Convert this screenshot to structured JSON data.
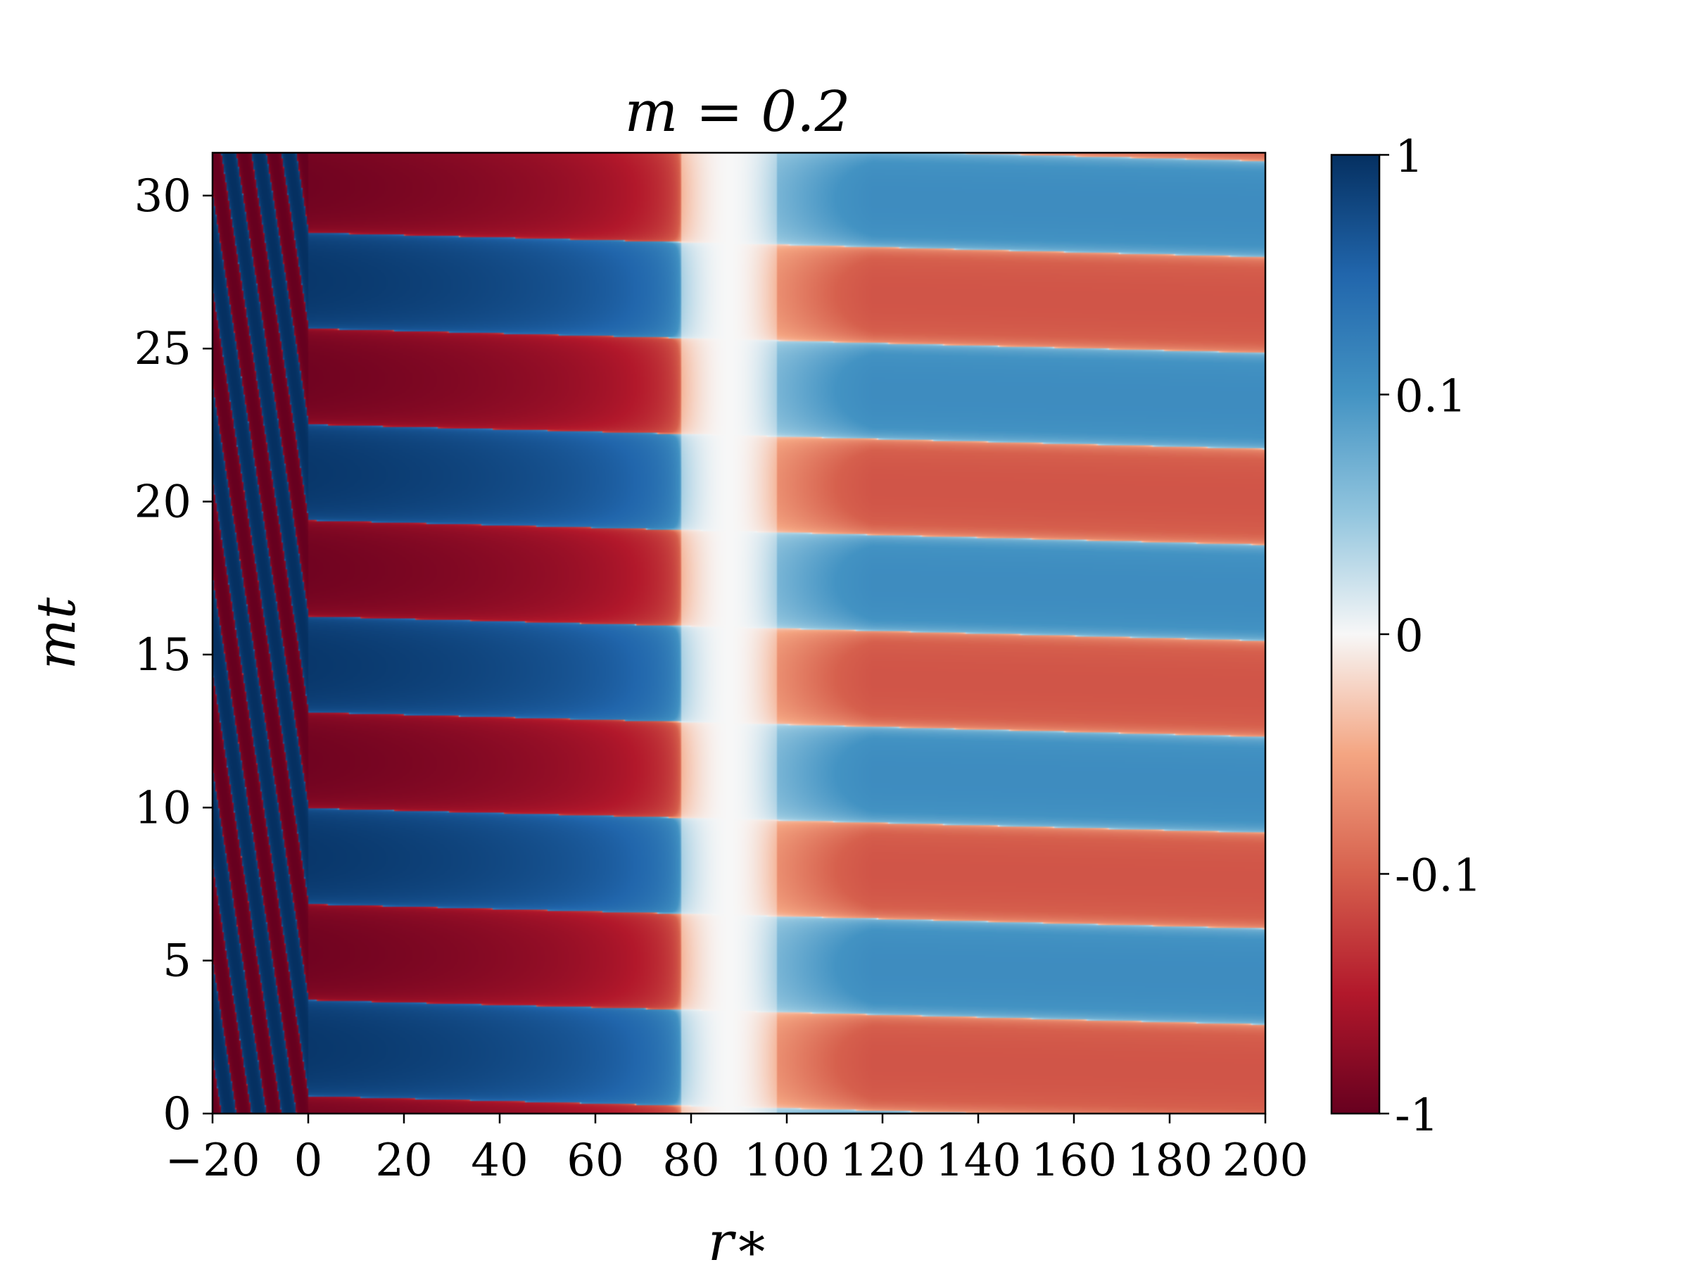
{
  "chart_data": {
    "type": "heatmap",
    "title": "m = 0.2",
    "xlabel": "r∗",
    "ylabel": "mt",
    "xlim": [
      -20,
      200
    ],
    "ylim": [
      0,
      31.4
    ],
    "x_ticks": [
      -20,
      0,
      20,
      40,
      60,
      80,
      100,
      120,
      140,
      160,
      180,
      200
    ],
    "x_tick_labels": [
      "−20",
      "0",
      "20",
      "40",
      "60",
      "80",
      "100",
      "120",
      "140",
      "160",
      "180",
      "200"
    ],
    "y_ticks": [
      0,
      5,
      10,
      15,
      20,
      25,
      30
    ],
    "y_tick_labels": [
      "0",
      "5",
      "10",
      "15",
      "20",
      "25",
      "30"
    ],
    "colorbar": {
      "ticks": [
        1,
        0.1,
        0,
        -0.1,
        -1
      ],
      "tick_labels": [
        "1",
        "0.1",
        "0",
        "-0.1",
        "-1"
      ],
      "colormap": "RdBu",
      "scale": "symlog"
    },
    "field": {
      "description_source": "oscillating field pattern",
      "band_period_mt": 3.14,
      "horizon_crossing_x": 0,
      "node_x_range": [
        84,
        92
      ],
      "inner_amplitude_max": 1,
      "outer_amplitude": 0.12,
      "ingoing_wave_slope": 1
    },
    "colors": {
      "deep_red": "#67001f",
      "red": "#b2182b",
      "light_red": "#d6604d",
      "pale_red": "#f4a582",
      "white": "#f7f7f7",
      "pale_blue": "#92c5de",
      "blue": "#4393c3",
      "mid_blue": "#2166ac",
      "deep_blue": "#053061"
    }
  }
}
